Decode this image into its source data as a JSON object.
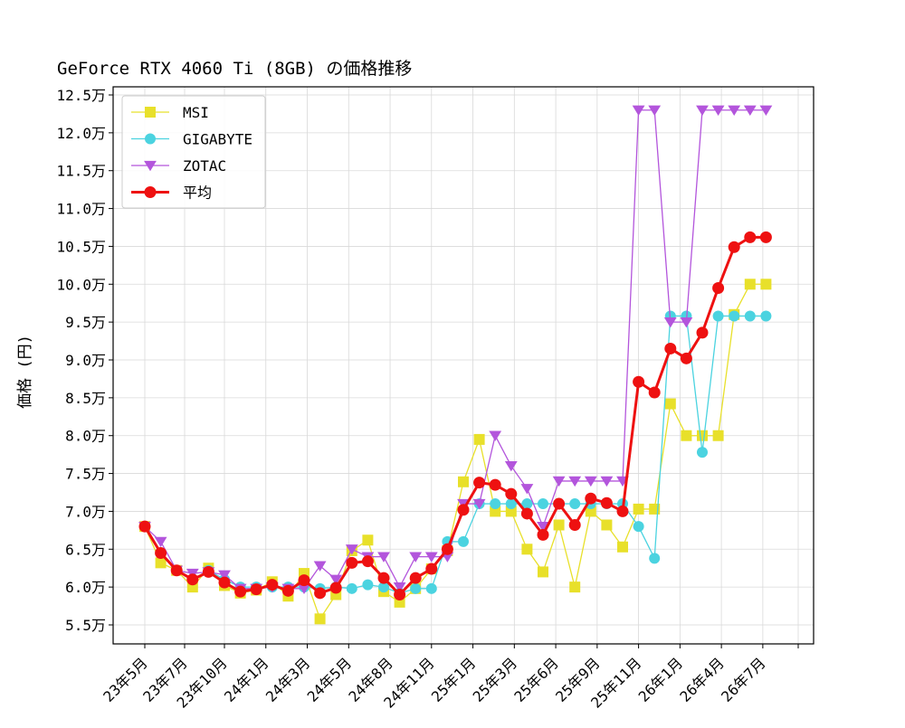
{
  "chart_data": {
    "type": "line",
    "title": "GeForce RTX 4060 Ti (8GB) の価格推移",
    "xlabel": "",
    "ylabel": "価格 (円)",
    "y_unit_suffix": "万",
    "ylim": [
      52500,
      127000
    ],
    "yticks": [
      55000,
      60000,
      65000,
      70000,
      75000,
      80000,
      85000,
      90000,
      95000,
      100000,
      105000,
      110000,
      115000,
      120000,
      125000
    ],
    "ytick_labels": [
      "5.5万",
      "6.0万",
      "6.5万",
      "7.0万",
      "7.5万",
      "8.0万",
      "8.5万",
      "9.0万",
      "9.5万",
      "10.0万",
      "10.5万",
      "11.0万",
      "11.5万",
      "12.0万",
      "12.5万"
    ],
    "xticks": [
      "23年5月",
      "23年7月",
      "23年10月",
      "24年1月",
      "24年3月",
      "24年5月",
      "24年8月",
      "24年11月",
      "25年1月",
      "25年3月",
      "25年6月",
      "25年9月",
      "25年11月",
      "26年1月",
      "26年4月",
      "26年7月"
    ],
    "grid": true,
    "legend_position": "upper-left",
    "series": [
      {
        "name": "MSI",
        "color": "#e8e02a",
        "marker": "square",
        "values": [
          68000,
          63200,
          62200,
          60000,
          62500,
          60200,
          59200,
          59600,
          60700,
          58800,
          61800,
          55800,
          59000,
          64800,
          66200,
          59400,
          58000,
          59800,
          62400,
          64800,
          73900,
          79500,
          70000,
          70000,
          65000,
          62000,
          68200,
          60000,
          70000,
          68200,
          65300,
          70300,
          70300,
          84200,
          80000,
          80000,
          80000,
          96000,
          100000,
          100000
        ]
      },
      {
        "name": "GIGABYTE",
        "color": "#4bd3e0",
        "marker": "circle",
        "values": [
          68000,
          64500,
          62200,
          61000,
          62200,
          61000,
          60000,
          60000,
          60000,
          60000,
          60000,
          59800,
          60000,
          59800,
          60300,
          60000,
          59200,
          59800,
          59800,
          66000,
          66000,
          71000,
          71000,
          71000,
          71000,
          71000,
          71000,
          71000,
          71000,
          71000,
          71000,
          68000,
          63800,
          95800,
          95800,
          77800,
          95800,
          95800,
          95800,
          95800
        ]
      },
      {
        "name": "ZOTAC",
        "color": "#b355dc",
        "marker": "triangle-down",
        "values": [
          68000,
          66000,
          62200,
          61800,
          62000,
          61600,
          59800,
          59800,
          60000,
          59800,
          59800,
          62800,
          61000,
          65000,
          64000,
          64000,
          60000,
          64000,
          64000,
          64000,
          71000,
          71000,
          80000,
          76000,
          73000,
          68000,
          74000,
          74000,
          74000,
          74000,
          74000,
          123000,
          123000,
          95000,
          95000,
          123000,
          123000,
          123000,
          123000,
          123000
        ]
      },
      {
        "name": "平均",
        "color": "#ee1111",
        "marker": "circle",
        "values": [
          68000,
          64500,
          62200,
          61000,
          62000,
          60600,
          59400,
          59700,
          60300,
          59500,
          60900,
          59200,
          59900,
          63200,
          63400,
          61200,
          59000,
          61200,
          62400,
          65000,
          70200,
          73800,
          73500,
          72300,
          69700,
          66900,
          71000,
          68200,
          71700,
          71100,
          70000,
          87100,
          85700,
          91500,
          90200,
          93600,
          99500,
          104900,
          106200,
          106200
        ]
      }
    ]
  }
}
